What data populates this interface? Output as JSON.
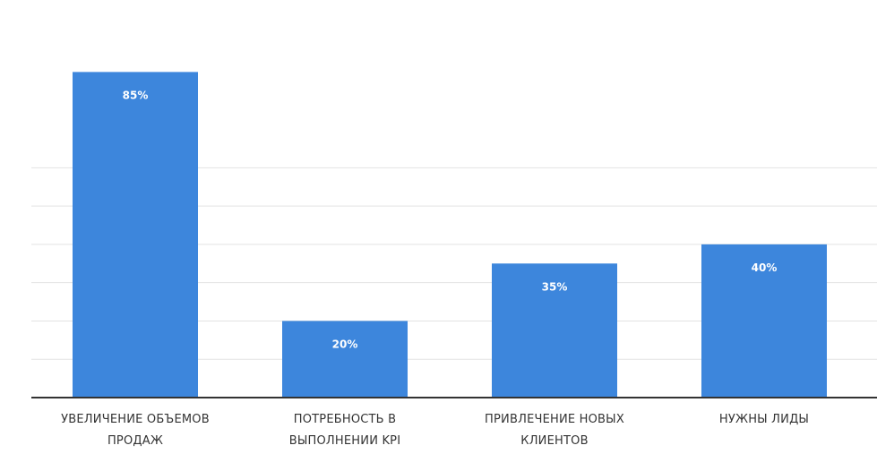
{
  "chart_data": {
    "type": "bar",
    "categories": [
      [
        "УВЕЛИЧЕНИЕ ОБЪЕМОВ",
        "ПРОДАЖ"
      ],
      [
        "ПОТРЕБНОСТЬ В",
        "ВЫПОЛНЕНИИ KPI"
      ],
      [
        "ПРИВЛЕЧЕНИЕ НОВЫХ",
        "КЛИЕНТОВ"
      ],
      [
        "НУЖНЫ ЛИДЫ"
      ]
    ],
    "values": [
      85,
      20,
      35,
      40
    ],
    "value_labels": [
      "85%",
      "20%",
      "35%",
      "40%"
    ],
    "ylim": [
      0,
      90
    ],
    "grid": true,
    "gridline_values": [
      10,
      20,
      30,
      40,
      50,
      60
    ],
    "bar_color": "#3d86dc",
    "grid_color": "#e3e3e3",
    "axis_color": "#333333"
  }
}
